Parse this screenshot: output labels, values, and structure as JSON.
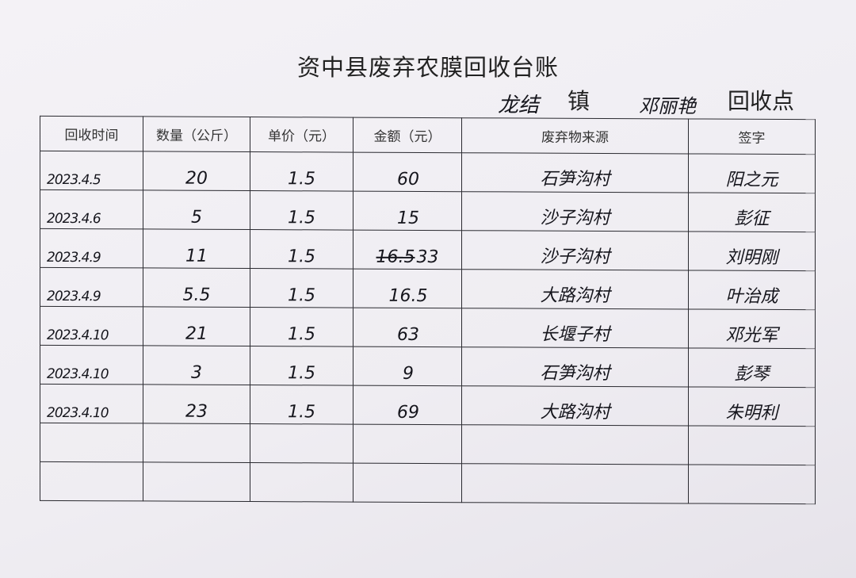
{
  "document": {
    "title": "资中县废弃农膜回收台账",
    "town_name": "龙结",
    "town_label": "镇",
    "collector_name": "邓丽艳",
    "point_label": "回收点"
  },
  "table": {
    "headers": [
      "回收时间",
      "数量（公斤）",
      "单价（元）",
      "金额（元）",
      "废弃物来源",
      "签字"
    ],
    "rows": [
      {
        "date": "2023.4.5",
        "qty": "20",
        "price": "1.5",
        "amount_struck": "",
        "amount": "60",
        "source": "石笋沟村",
        "signature": "阳之元"
      },
      {
        "date": "2023.4.6",
        "qty": "5",
        "price": "1.5",
        "amount_struck": "",
        "amount": "15",
        "source": "沙子沟村",
        "signature": "彭征"
      },
      {
        "date": "2023.4.9",
        "qty": "11",
        "price": "1.5",
        "amount_struck": "16.5",
        "amount": "33",
        "source": "沙子沟村",
        "signature": "刘明刚"
      },
      {
        "date": "2023.4.9",
        "qty": "5.5",
        "price": "1.5",
        "amount_struck": "",
        "amount": "16.5",
        "source": "大路沟村",
        "signature": "叶治成"
      },
      {
        "date": "2023.4.10",
        "qty": "21",
        "price": "1.5",
        "amount_struck": "",
        "amount": "63",
        "source": "长堰子村",
        "signature": "邓光军"
      },
      {
        "date": "2023.4.10",
        "qty": "3",
        "price": "1.5",
        "amount_struck": "",
        "amount": "9",
        "source": "石笋沟村",
        "signature": "彭琴"
      },
      {
        "date": "2023.4.10",
        "qty": "23",
        "price": "1.5",
        "amount_struck": "",
        "amount": "69",
        "source": "大路沟村",
        "signature": "朱明利"
      },
      {
        "date": "",
        "qty": "",
        "price": "",
        "amount_struck": "",
        "amount": "",
        "source": "",
        "signature": ""
      },
      {
        "date": "",
        "qty": "",
        "price": "",
        "amount_struck": "",
        "amount": "",
        "source": "",
        "signature": ""
      }
    ]
  }
}
